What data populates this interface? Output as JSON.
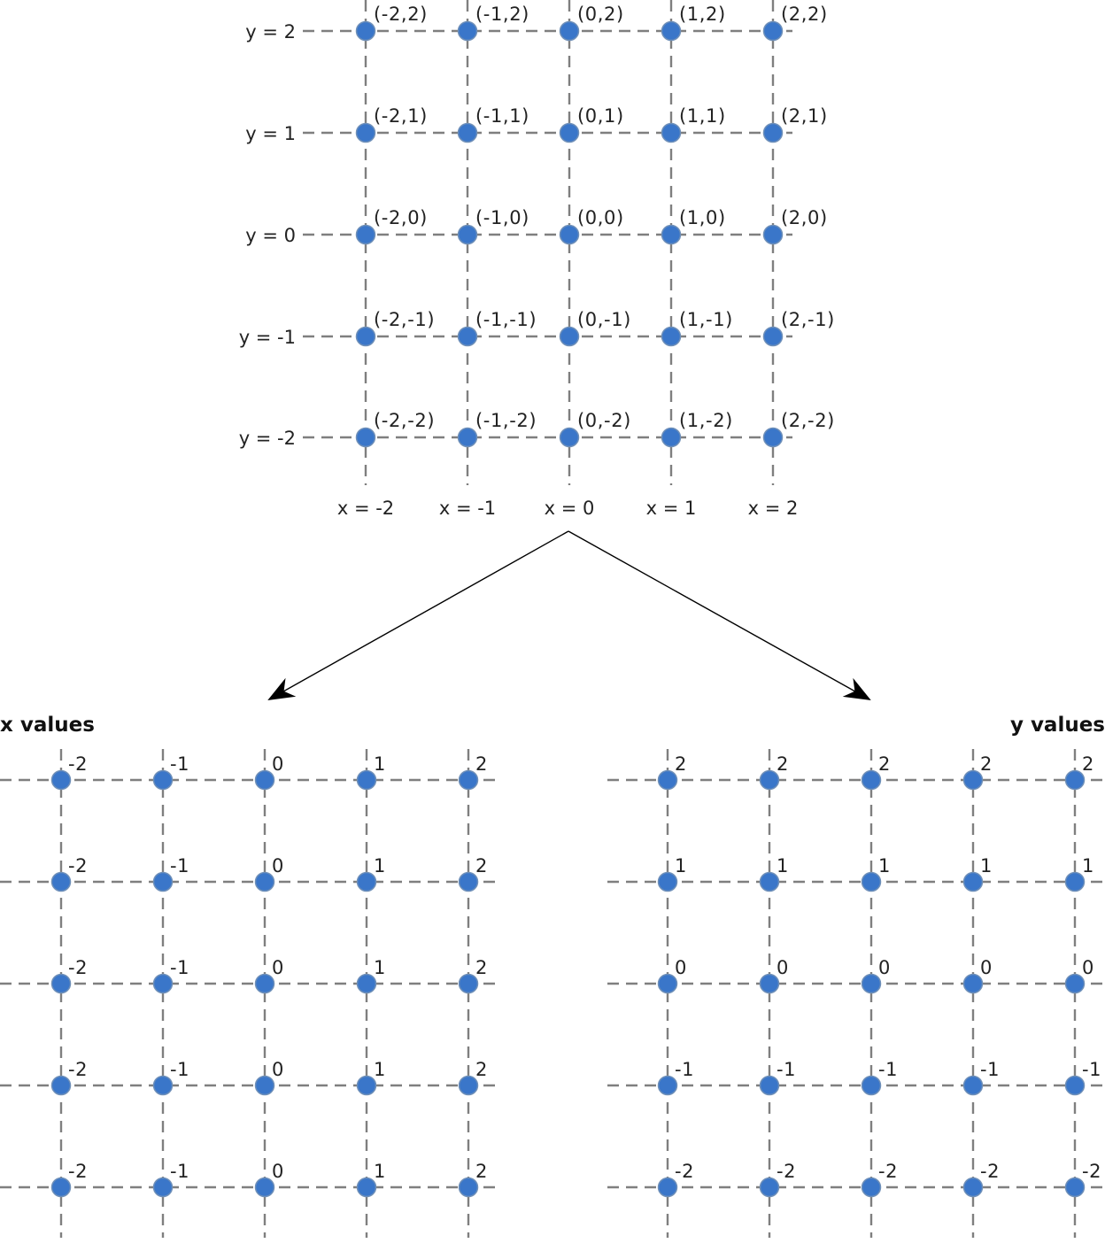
{
  "top_grid": {
    "x_values": [
      -2,
      -1,
      0,
      1,
      2
    ],
    "y_values": [
      2,
      1,
      0,
      -1,
      -2
    ],
    "row_labels": [
      "y = 2",
      "y = 1",
      "y = 0",
      "y = -1",
      "y = -2"
    ],
    "column_labels": [
      "x = -2",
      "x = -1",
      "x = 0",
      "x = 1",
      "x = 2"
    ],
    "point_labels": [
      [
        "(-2,2)",
        "(-1,2)",
        "(0,2)",
        "(1,2)",
        "(2,2)"
      ],
      [
        "(-2,1)",
        "(-1,1)",
        "(0,1)",
        "(1,1)",
        "(2,1)"
      ],
      [
        "(-2,0)",
        "(-1,0)",
        "(0,0)",
        "(1,0)",
        "(2,0)"
      ],
      [
        "(-2,-1)",
        "(-1,-1)",
        "(0,-1)",
        "(1,-1)",
        "(2,-1)"
      ],
      [
        "(-2,-2)",
        "(-1,-2)",
        "(0,-2)",
        "(1,-2)",
        "(2,-2)"
      ]
    ]
  },
  "x_values_grid": {
    "title": "x values",
    "values": [
      [
        "-2",
        "-1",
        "0",
        "1",
        "2"
      ],
      [
        "-2",
        "-1",
        "0",
        "1",
        "2"
      ],
      [
        "-2",
        "-1",
        "0",
        "1",
        "2"
      ],
      [
        "-2",
        "-1",
        "0",
        "1",
        "2"
      ],
      [
        "-2",
        "-1",
        "0",
        "1",
        "2"
      ]
    ]
  },
  "y_values_grid": {
    "title": "y values",
    "values": [
      [
        "2",
        "2",
        "2",
        "2",
        "2"
      ],
      [
        "1",
        "1",
        "1",
        "1",
        "1"
      ],
      [
        "0",
        "0",
        "0",
        "0",
        "0"
      ],
      [
        "-1",
        "-1",
        "-1",
        "-1",
        "-1"
      ],
      [
        "-2",
        "-2",
        "-2",
        "-2",
        "-2"
      ]
    ]
  },
  "colors": {
    "point": "#3a76c9",
    "gridline": "#7f7f7f",
    "arrow": "#000000"
  }
}
